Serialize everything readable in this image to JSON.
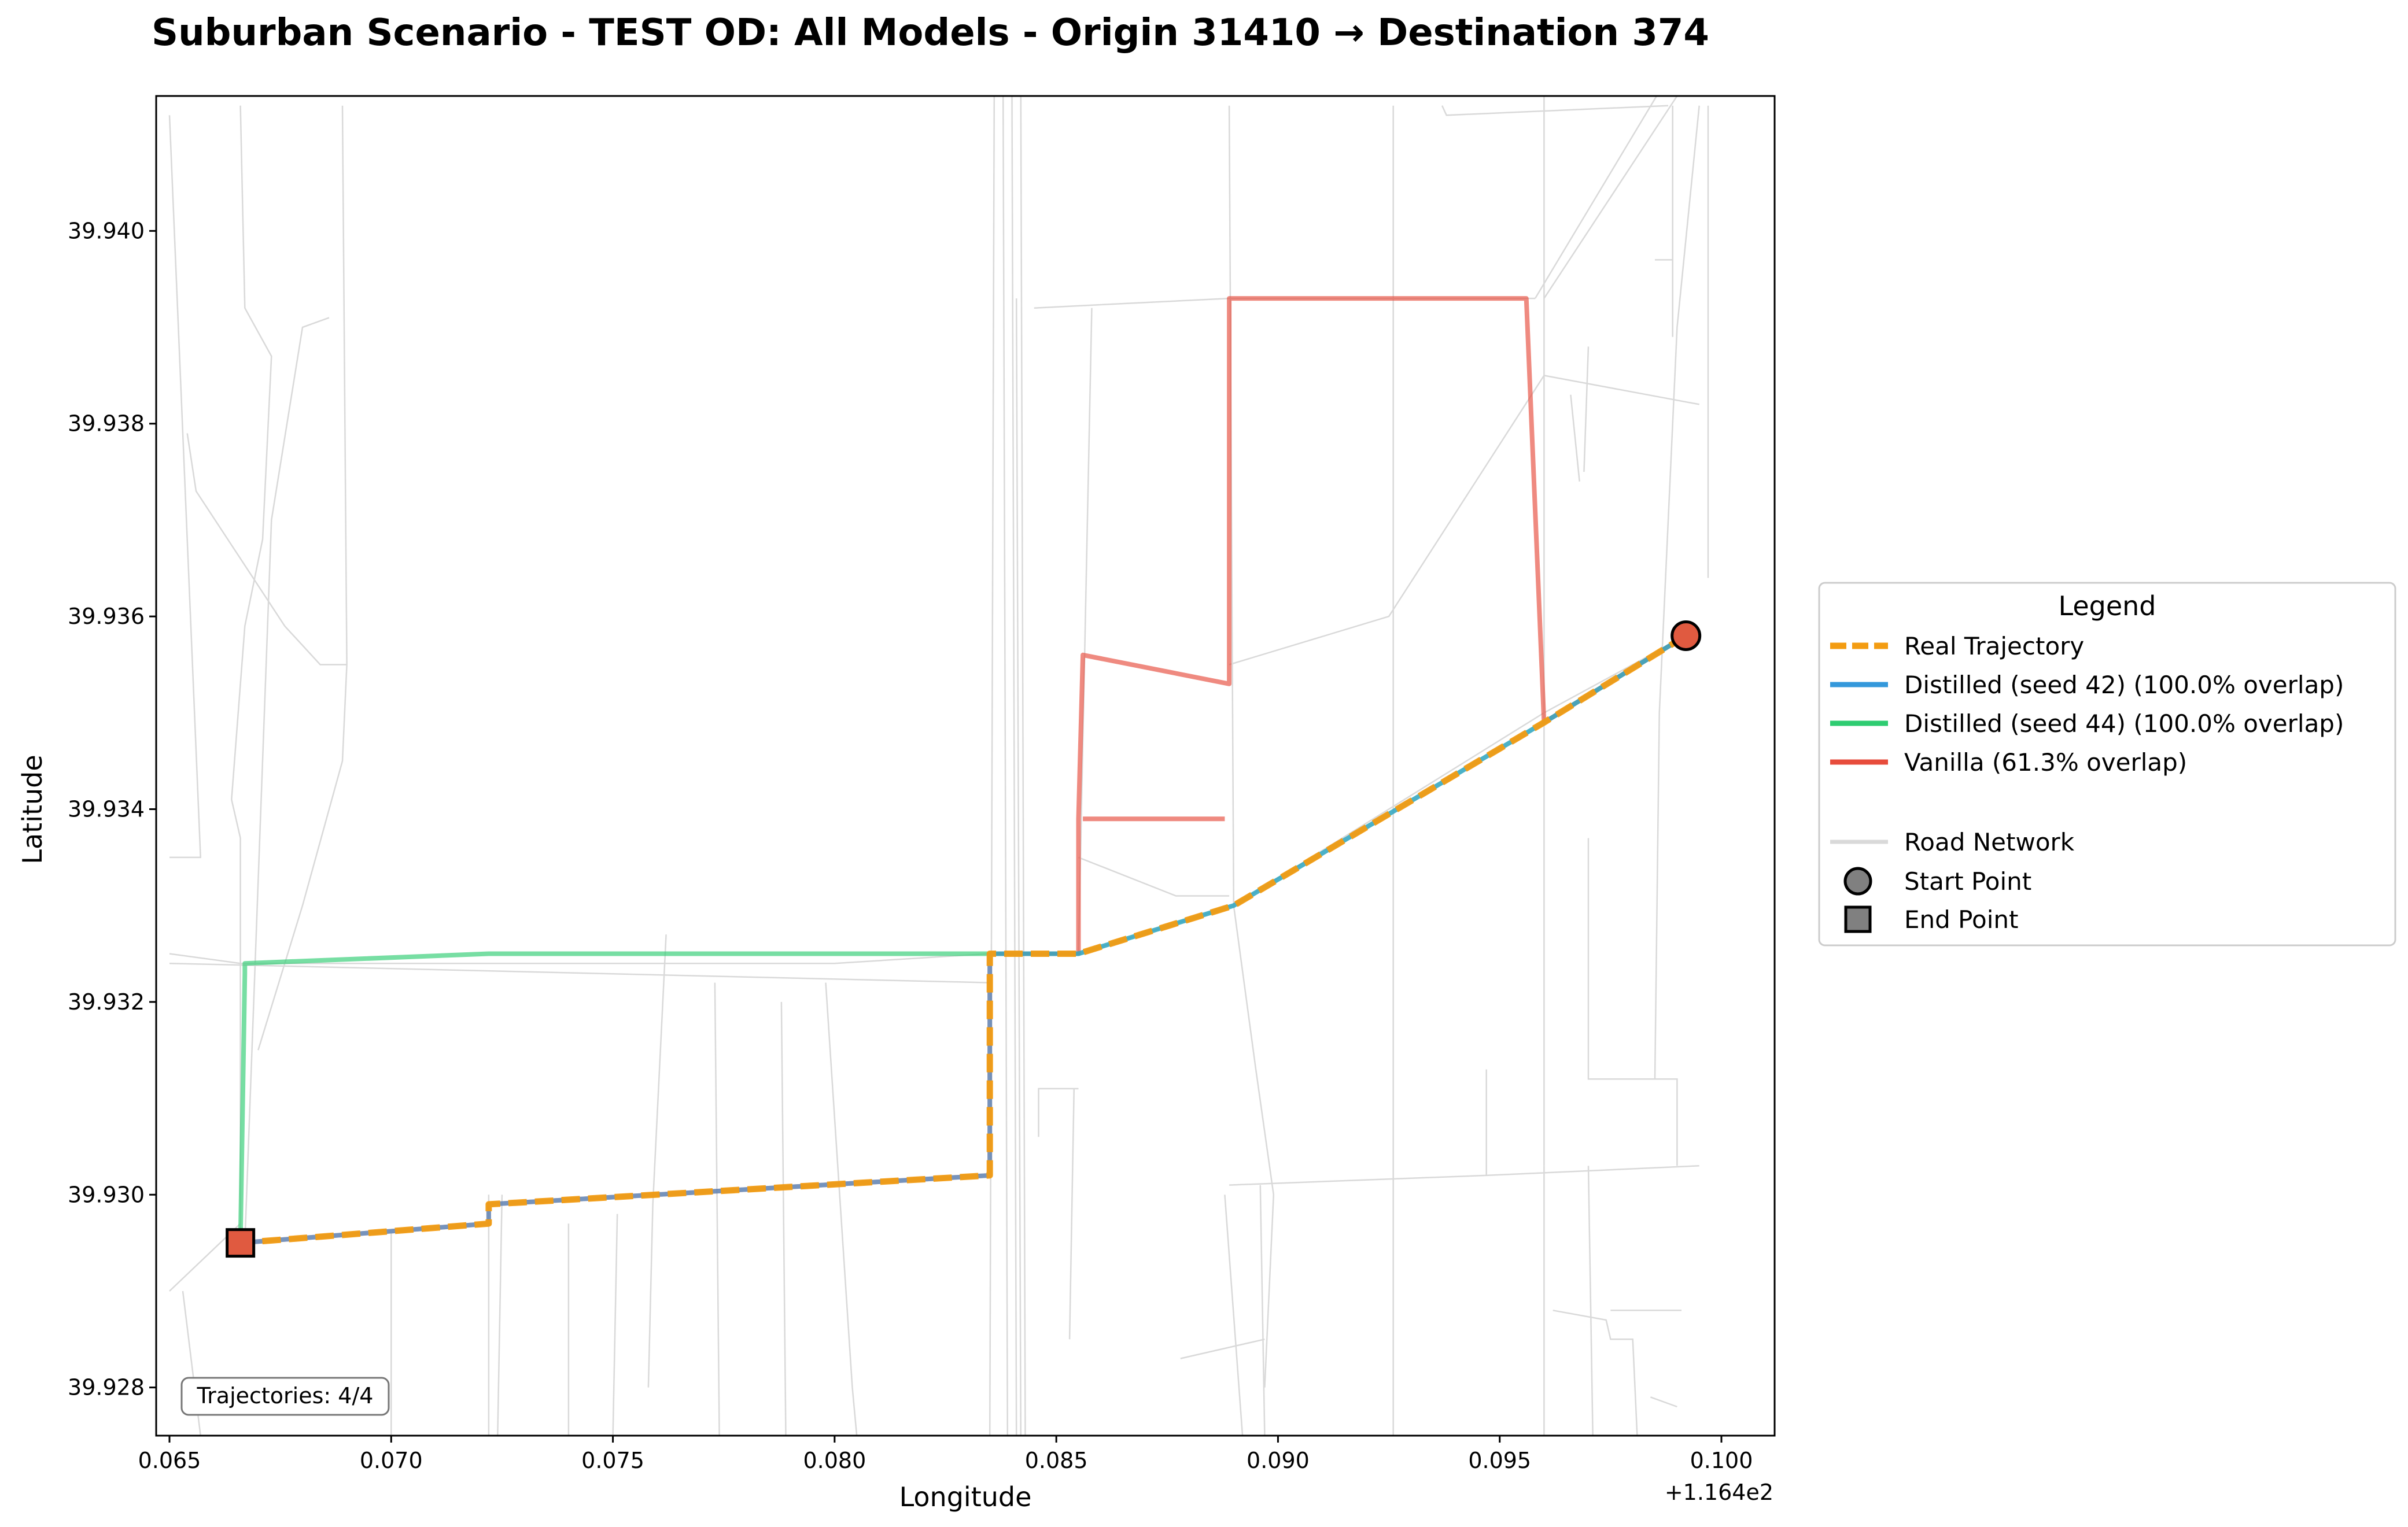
{
  "chart_data": {
    "type": "line",
    "title": "Suburban Scenario - TEST OD: All Models - Origin 31410 → Destination 374",
    "xlabel": "Longitude",
    "ylabel": "Latitude",
    "x_offset_label": "+1.164e2",
    "xlim": [
      0.0647,
      0.1012
    ],
    "ylim": [
      39.9275,
      39.9414
    ],
    "x_ticks": [
      {
        "value": 0.065,
        "label": "0.065"
      },
      {
        "value": 0.07,
        "label": "0.070"
      },
      {
        "value": 0.075,
        "label": "0.075"
      },
      {
        "value": 0.08,
        "label": "0.080"
      },
      {
        "value": 0.085,
        "label": "0.085"
      },
      {
        "value": 0.09,
        "label": "0.090"
      },
      {
        "value": 0.095,
        "label": "0.095"
      },
      {
        "value": 0.1,
        "label": "0.100"
      }
    ],
    "y_ticks": [
      {
        "value": 39.928,
        "label": "39.928"
      },
      {
        "value": 39.93,
        "label": "39.930"
      },
      {
        "value": 39.932,
        "label": "39.932"
      },
      {
        "value": 39.934,
        "label": "39.934"
      },
      {
        "value": 39.936,
        "label": "39.936"
      },
      {
        "value": 39.938,
        "label": "39.938"
      },
      {
        "value": 39.94,
        "label": "39.940"
      }
    ],
    "grid": false,
    "legend_position": "right",
    "road_network": [
      [
        [
          0.065,
          39.9412
        ],
        [
          0.0657,
          39.9335
        ],
        [
          0.065,
          39.9335
        ]
      ],
      [
        [
          0.0666,
          39.9413
        ],
        [
          0.0667,
          39.9392
        ],
        [
          0.0673,
          39.9387
        ],
        [
          0.0671,
          39.9368
        ],
        [
          0.0667,
          39.9359
        ],
        [
          0.0664,
          39.9341
        ],
        [
          0.0666,
          39.9337
        ],
        [
          0.0666,
          39.9295
        ]
      ],
      [
        [
          0.0667,
          39.9295
        ],
        [
          0.0673,
          39.937
        ],
        [
          0.068,
          39.939
        ],
        [
          0.0686,
          39.9391
        ]
      ],
      [
        [
          0.0654,
          39.9379
        ],
        [
          0.0656,
          39.9373
        ],
        [
          0.0676,
          39.9359
        ],
        [
          0.0684,
          39.9355
        ],
        [
          0.069,
          39.9355
        ]
      ],
      [
        [
          0.0689,
          39.9413
        ],
        [
          0.069,
          39.9355
        ],
        [
          0.0689,
          39.9345
        ],
        [
          0.068,
          39.933
        ],
        [
          0.067,
          39.9315
        ]
      ],
      [
        [
          0.065,
          39.9325
        ],
        [
          0.0666,
          39.9324
        ],
        [
          0.0722,
          39.9324
        ],
        [
          0.08,
          39.9324
        ],
        [
          0.0835,
          39.9325
        ],
        [
          0.0855,
          39.9325
        ],
        [
          0.089,
          39.933
        ],
        [
          0.096,
          39.935
        ],
        [
          0.0992,
          39.9358
        ]
      ],
      [
        [
          0.065,
          39.9324
        ],
        [
          0.0835,
          39.9322
        ]
      ],
      [
        [
          0.0722,
          39.93
        ],
        [
          0.0722,
          39.9275
        ]
      ],
      [
        [
          0.0725,
          39.93
        ],
        [
          0.0724,
          39.9275
        ]
      ],
      [
        [
          0.0762,
          39.9327
        ],
        [
          0.0759,
          39.9299
        ],
        [
          0.0758,
          39.928
        ]
      ],
      [
        [
          0.0773,
          39.9322
        ],
        [
          0.0774,
          39.9275
        ]
      ],
      [
        [
          0.0788,
          39.932
        ],
        [
          0.0789,
          39.9275
        ]
      ],
      [
        [
          0.0798,
          39.9322
        ],
        [
          0.0804,
          39.928
        ],
        [
          0.0805,
          39.9275
        ]
      ],
      [
        [
          0.074,
          39.9297
        ],
        [
          0.074,
          39.9275
        ]
      ],
      [
        [
          0.0751,
          39.9298
        ],
        [
          0.075,
          39.9275
        ]
      ],
      [
        [
          0.07,
          39.9296
        ],
        [
          0.07,
          39.9275
        ]
      ],
      [
        [
          0.065,
          39.929
        ],
        [
          0.0666,
          39.9297
        ]
      ],
      [
        [
          0.065,
          39.9275
        ],
        [
          0.0656,
          39.9275
        ]
      ],
      [
        [
          0.0653,
          39.929
        ],
        [
          0.0657,
          39.9275
        ]
      ],
      [
        [
          0.0836,
          39.9414
        ],
        [
          0.0835,
          39.9275
        ]
      ],
      [
        [
          0.0838,
          39.9414
        ],
        [
          0.0839,
          39.9275
        ]
      ],
      [
        [
          0.084,
          39.9414
        ],
        [
          0.0841,
          39.9275
        ]
      ],
      [
        [
          0.0842,
          39.9414
        ],
        [
          0.0843,
          39.9275
        ]
      ],
      [
        [
          0.0841,
          39.9393
        ],
        [
          0.0842,
          39.9275
        ]
      ],
      [
        [
          0.0845,
          39.9392
        ],
        [
          0.0889,
          39.9393
        ],
        [
          0.0926,
          39.9393
        ],
        [
          0.0958,
          39.9393
        ]
      ],
      [
        [
          0.0858,
          39.9392
        ],
        [
          0.0855,
          39.9325
        ]
      ],
      [
        [
          0.0855,
          39.9311
        ],
        [
          0.0846,
          39.9311
        ],
        [
          0.0846,
          39.9306
        ]
      ],
      [
        [
          0.0854,
          39.9311
        ],
        [
          0.0853,
          39.9285
        ]
      ],
      [
        [
          0.0889,
          39.9413
        ],
        [
          0.089,
          39.933
        ]
      ],
      [
        [
          0.089,
          39.933
        ],
        [
          0.0895,
          39.9313
        ],
        [
          0.0899,
          39.93
        ],
        [
          0.0897,
          39.928
        ]
      ],
      [
        [
          0.0888,
          39.93
        ],
        [
          0.0892,
          39.9275
        ]
      ],
      [
        [
          0.0896,
          39.9301
        ],
        [
          0.0897,
          39.9275
        ]
      ],
      [
        [
          0.0889,
          39.9301
        ],
        [
          0.0947,
          39.9302
        ],
        [
          0.0995,
          39.9303
        ]
      ],
      [
        [
          0.0878,
          39.9283
        ],
        [
          0.0897,
          39.9285
        ]
      ],
      [
        [
          0.0855,
          39.9335
        ],
        [
          0.0877,
          39.9331
        ],
        [
          0.0889,
          39.9331
        ]
      ],
      [
        [
          0.0926,
          39.9413
        ],
        [
          0.0926,
          39.9302
        ],
        [
          0.0926,
          39.9275
        ]
      ],
      [
        [
          0.0937,
          39.9413
        ],
        [
          0.0938,
          39.9412
        ],
        [
          0.0988,
          39.9413
        ]
      ],
      [
        [
          0.0947,
          39.9313
        ],
        [
          0.0947,
          39.9302
        ]
      ],
      [
        [
          0.0995,
          39.9413
        ],
        [
          0.099,
          39.939
        ],
        [
          0.0986,
          39.935
        ],
        [
          0.0985,
          39.9312
        ]
      ],
      [
        [
          0.0997,
          39.9413
        ],
        [
          0.0997,
          39.9364
        ]
      ],
      [
        [
          0.0989,
          39.9413
        ],
        [
          0.0989,
          39.9389
        ]
      ],
      [
        [
          0.096,
          39.9393
        ],
        [
          0.099,
          39.9414
        ]
      ],
      [
        [
          0.0958,
          39.9393
        ],
        [
          0.0988,
          39.9416
        ]
      ],
      [
        [
          0.0889,
          39.9355
        ],
        [
          0.0925,
          39.936
        ],
        [
          0.096,
          39.9385
        ],
        [
          0.0995,
          39.9382
        ]
      ],
      [
        [
          0.097,
          39.9337
        ],
        [
          0.097,
          39.9312
        ],
        [
          0.099,
          39.9312
        ],
        [
          0.099,
          39.9303
        ]
      ],
      [
        [
          0.097,
          39.9303
        ],
        [
          0.0971,
          39.9275
        ]
      ],
      [
        [
          0.096,
          39.9414
        ],
        [
          0.096,
          39.9303
        ]
      ],
      [
        [
          0.096,
          39.9303
        ],
        [
          0.096,
          39.9275
        ]
      ],
      [
        [
          0.0962,
          39.9288
        ],
        [
          0.0974,
          39.9287
        ],
        [
          0.0975,
          39.9285
        ],
        [
          0.098,
          39.9285
        ],
        [
          0.0981,
          39.9275
        ]
      ],
      [
        [
          0.0975,
          39.9288
        ],
        [
          0.0991,
          39.9288
        ]
      ],
      [
        [
          0.0984,
          39.9279
        ],
        [
          0.099,
          39.9278
        ]
      ],
      [
        [
          0.0966,
          39.9383
        ],
        [
          0.0968,
          39.9374
        ]
      ],
      [
        [
          0.097,
          39.9388
        ],
        [
          0.0969,
          39.9375
        ]
      ],
      [
        [
          0.0985,
          39.9397
        ],
        [
          0.0989,
          39.9397
        ]
      ]
    ],
    "series": [
      {
        "name": "Real Trajectory",
        "legend_label": "Real Trajectory",
        "color": "#f39c12",
        "style": "dashed",
        "points": [
          [
            0.0992,
            39.9358
          ],
          [
            0.096,
            39.9349
          ],
          [
            0.089,
            39.933
          ],
          [
            0.0855,
            39.9325
          ],
          [
            0.0835,
            39.9325
          ],
          [
            0.0835,
            39.9302
          ],
          [
            0.0722,
            39.9299
          ],
          [
            0.0722,
            39.9297
          ],
          [
            0.0666,
            39.9295
          ]
        ]
      },
      {
        "name": "Distilled (seed 42)",
        "legend_label": "Distilled (seed 42) (100.0% overlap)",
        "color": "#3498db",
        "style": "solid",
        "points": [
          [
            0.0992,
            39.9358
          ],
          [
            0.096,
            39.9349
          ],
          [
            0.089,
            39.933
          ],
          [
            0.0855,
            39.9325
          ],
          [
            0.0835,
            39.9325
          ],
          [
            0.0835,
            39.9302
          ],
          [
            0.0722,
            39.9299
          ],
          [
            0.0722,
            39.9297
          ],
          [
            0.0666,
            39.9295
          ]
        ]
      },
      {
        "name": "Distilled (seed 44)",
        "legend_label": "Distilled (seed 44) (100.0% overlap)",
        "color": "#2ecc71",
        "style": "solid",
        "points": [
          [
            0.0992,
            39.9358
          ],
          [
            0.096,
            39.9349
          ],
          [
            0.089,
            39.933
          ],
          [
            0.0855,
            39.9325
          ],
          [
            0.0835,
            39.9325
          ],
          [
            0.0722,
            39.9325
          ],
          [
            0.0667,
            39.9324
          ],
          [
            0.0667,
            39.9323
          ],
          [
            0.0666,
            39.9295
          ]
        ]
      },
      {
        "name": "Vanilla",
        "legend_label": "Vanilla (61.3% overlap)",
        "color": "#e74c3c",
        "style": "solid",
        "points": [
          [
            0.0992,
            39.9358
          ],
          [
            0.096,
            39.9349
          ],
          [
            0.0956,
            39.9393
          ],
          [
            0.0926,
            39.9393
          ],
          [
            0.0889,
            39.9393
          ],
          [
            0.0889,
            39.9353
          ],
          [
            0.0856,
            39.9356
          ],
          [
            0.0855,
            39.9339
          ],
          [
            0.0855,
            39.9325
          ],
          [
            0.0835,
            39.9325
          ],
          [
            0.0835,
            39.9302
          ],
          [
            0.0722,
            39.9299
          ],
          [
            0.0722,
            39.9297
          ],
          [
            0.0666,
            39.9295
          ]
        ],
        "extra_segments": [
          [
            [
              0.0856,
              39.9339
            ],
            [
              0.0888,
              39.9339
            ]
          ]
        ]
      }
    ],
    "start_point": {
      "x": 0.0992,
      "y": 39.9358,
      "color": "#e05a40",
      "legend_label": "Start Point"
    },
    "end_point": {
      "x": 0.0666,
      "y": 39.9295,
      "color": "#e05a40",
      "legend_label": "End Point"
    },
    "road_network_label": "Road Network",
    "road_color": "#d9d9d9",
    "legend_title": "Legend",
    "annotation": "Trajectories: 4/4"
  }
}
